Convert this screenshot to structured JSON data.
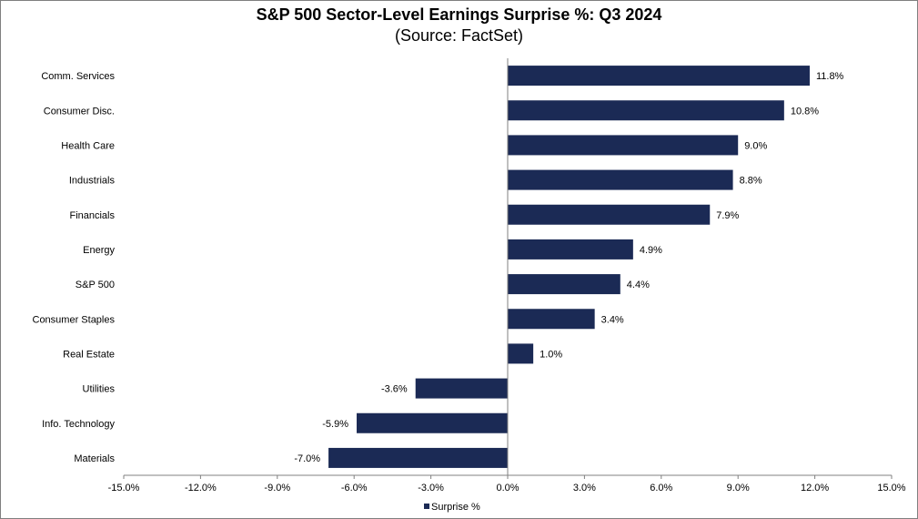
{
  "chart_data": {
    "type": "bar",
    "orientation": "horizontal",
    "title": "S&P 500 Sector-Level Earnings Surprise %: Q3 2024",
    "subtitle": "(Source: FactSet)",
    "categories": [
      "Comm. Services",
      "Consumer Disc.",
      "Health Care",
      "Industrials",
      "Financials",
      "Energy",
      "S&P 500",
      "Consumer Staples",
      "Real Estate",
      "Utilities",
      "Info. Technology",
      "Materials"
    ],
    "series": [
      {
        "name": "Surprise %",
        "values": [
          11.8,
          10.8,
          9.0,
          8.8,
          7.9,
          4.9,
          4.4,
          3.4,
          1.0,
          -3.6,
          -5.9,
          -7.0
        ],
        "labels": [
          "11.8%",
          "10.8%",
          "9.0%",
          "8.8%",
          "7.9%",
          "4.9%",
          "4.4%",
          "3.4%",
          "1.0%",
          "-3.6%",
          "-5.9%",
          "-7.0%"
        ]
      }
    ],
    "xlim": [
      -15,
      15
    ],
    "ticks": [
      -15,
      -12,
      -9,
      -6,
      -3,
      0,
      3,
      6,
      9,
      12,
      15
    ],
    "tick_labels": [
      "-15.0%",
      "-12.0%",
      "-9.0%",
      "-6.0%",
      "-3.0%",
      "0.0%",
      "3.0%",
      "6.0%",
      "9.0%",
      "12.0%",
      "15.0%"
    ],
    "legend": {
      "label": "Surprise %",
      "position": "bottom"
    },
    "grid": false,
    "colors": {
      "bar": "#1b2a55",
      "axis": "#808080"
    }
  }
}
